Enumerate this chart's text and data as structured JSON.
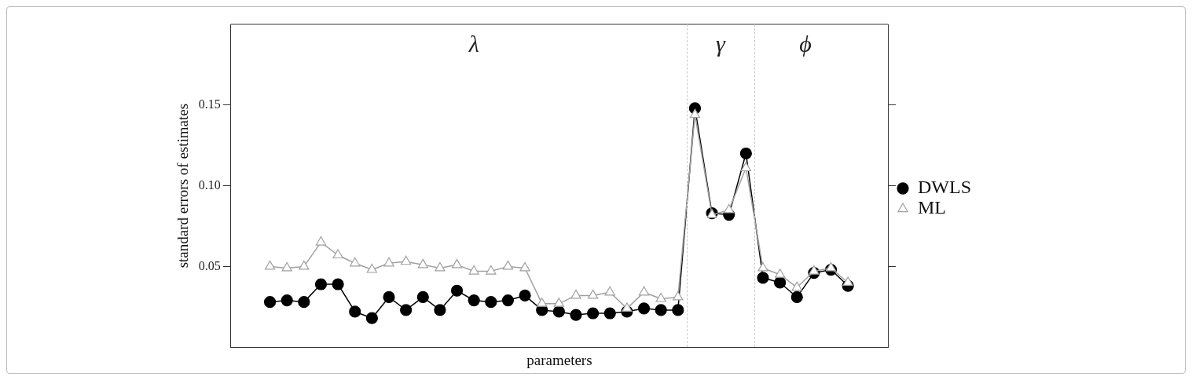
{
  "chart_data": {
    "type": "line",
    "xlabel": "parameters",
    "ylabel": "standard errors of estimates",
    "categories": [
      null,
      null,
      null,
      null,
      null,
      null,
      null,
      null,
      null,
      null,
      null,
      null,
      null,
      null,
      null,
      null,
      null,
      null,
      null,
      null,
      null,
      null,
      null,
      null,
      null,
      null,
      null,
      null,
      null,
      null,
      null,
      null,
      null,
      null,
      null
    ],
    "ylim": [
      0,
      0.2
    ],
    "yticks": [
      {
        "value": 0.05,
        "label": "0.05"
      },
      {
        "value": 0.1,
        "label": "0.10"
      },
      {
        "value": 0.15,
        "label": "0.15"
      }
    ],
    "tick_labels": "y",
    "grid": false,
    "legend": "right",
    "line_style": "solid",
    "series": [
      {
        "name": "DWLS",
        "color": "#000000",
        "marker": "circle",
        "values": [
          0.028,
          0.029,
          0.028,
          0.039,
          0.039,
          0.022,
          0.018,
          0.031,
          0.023,
          0.031,
          0.023,
          0.035,
          0.029,
          0.028,
          0.029,
          0.032,
          0.023,
          0.022,
          0.02,
          0.021,
          0.021,
          0.022,
          0.024,
          0.023,
          0.023,
          0.148,
          0.083,
          0.082,
          0.12,
          0.043,
          0.04,
          0.031,
          0.046,
          0.048,
          0.038
        ]
      },
      {
        "name": "ML",
        "color": "#a0a0a0",
        "marker": "triangle",
        "values": [
          0.05,
          0.049,
          0.05,
          0.065,
          0.057,
          0.052,
          0.048,
          0.052,
          0.053,
          0.051,
          0.049,
          0.051,
          0.047,
          0.047,
          0.05,
          0.049,
          0.027,
          0.027,
          0.032,
          0.032,
          0.034,
          0.024,
          0.034,
          0.03,
          0.031,
          0.144,
          0.082,
          0.085,
          0.111,
          0.049,
          0.045,
          0.037,
          0.047,
          0.049,
          0.04
        ]
      }
    ],
    "annotations": [
      "λ",
      "γ",
      "ϕ"
    ]
  }
}
